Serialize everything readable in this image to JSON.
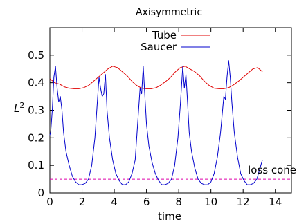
{
  "chart_data": {
    "type": "line",
    "title": "Axisymmetric",
    "xlabel": "time",
    "ylabel_base": "L",
    "ylabel_sup": "2",
    "xlim": [
      0,
      15
    ],
    "ylim": [
      0,
      0.6
    ],
    "xticks": [
      0,
      2,
      4,
      6,
      8,
      10,
      12,
      14
    ],
    "yticks": [
      0,
      0.1,
      0.2,
      0.3,
      0.4,
      0.5
    ],
    "xtick_labels": [
      "0",
      "2",
      "4",
      "6",
      "8",
      "10",
      "12",
      "14"
    ],
    "ytick_labels": [
      "0",
      "0.1",
      "0.2",
      "0.3",
      "0.4",
      "0.5"
    ],
    "grid": false,
    "legend_position": "top-right",
    "series": [
      {
        "name": "Tube",
        "color": "#e00000",
        "x": [
          0,
          0.3,
          0.6,
          0.9,
          1.2,
          1.5,
          1.8,
          2.1,
          2.4,
          2.7,
          3.0,
          3.3,
          3.6,
          3.9,
          4.2,
          4.5,
          4.8,
          5.1,
          5.4,
          5.7,
          6.0,
          6.3,
          6.6,
          6.9,
          7.2,
          7.5,
          7.8,
          8.1,
          8.4,
          8.7,
          9.0,
          9.3,
          9.6,
          9.9,
          10.2,
          10.5,
          10.8,
          11.1,
          11.4,
          11.7,
          12.0,
          12.3,
          12.6,
          12.9,
          13.2
        ],
        "y": [
          0.415,
          0.4,
          0.395,
          0.385,
          0.38,
          0.378,
          0.378,
          0.382,
          0.39,
          0.405,
          0.42,
          0.435,
          0.45,
          0.46,
          0.455,
          0.44,
          0.425,
          0.405,
          0.39,
          0.38,
          0.378,
          0.378,
          0.382,
          0.392,
          0.405,
          0.42,
          0.44,
          0.455,
          0.46,
          0.45,
          0.44,
          0.425,
          0.405,
          0.39,
          0.38,
          0.378,
          0.378,
          0.382,
          0.392,
          0.405,
          0.42,
          0.435,
          0.45,
          0.455,
          0.44
        ]
      },
      {
        "name": "Saucer",
        "color": "#0000cc",
        "x": [
          0,
          0.05,
          0.15,
          0.25,
          0.35,
          0.45,
          0.55,
          0.65,
          0.75,
          0.85,
          1.0,
          1.2,
          1.4,
          1.6,
          1.8,
          2.0,
          2.2,
          2.4,
          2.6,
          2.8,
          2.95,
          3.05,
          3.15,
          3.25,
          3.35,
          3.45,
          3.55,
          3.7,
          3.9,
          4.1,
          4.3,
          4.5,
          4.7,
          4.9,
          5.1,
          5.3,
          5.45,
          5.6,
          5.7,
          5.8,
          5.9,
          6.0,
          6.15,
          6.35,
          6.55,
          6.75,
          6.95,
          7.15,
          7.35,
          7.55,
          7.75,
          7.95,
          8.1,
          8.25,
          8.35,
          8.45,
          8.55,
          8.65,
          8.8,
          9.0,
          9.2,
          9.4,
          9.6,
          9.8,
          10.0,
          10.2,
          10.4,
          10.6,
          10.8,
          10.9,
          11.0,
          11.1,
          11.2,
          11.3,
          11.45,
          11.65,
          11.85,
          12.05,
          12.25,
          12.45,
          12.65,
          12.85,
          13.05,
          13.2
        ],
        "y": [
          0.21,
          0.22,
          0.3,
          0.42,
          0.46,
          0.38,
          0.33,
          0.35,
          0.3,
          0.22,
          0.15,
          0.1,
          0.06,
          0.04,
          0.03,
          0.03,
          0.035,
          0.05,
          0.1,
          0.2,
          0.33,
          0.42,
          0.38,
          0.35,
          0.36,
          0.43,
          0.3,
          0.2,
          0.12,
          0.07,
          0.045,
          0.03,
          0.03,
          0.04,
          0.07,
          0.12,
          0.25,
          0.38,
          0.36,
          0.46,
          0.35,
          0.25,
          0.17,
          0.11,
          0.07,
          0.045,
          0.03,
          0.03,
          0.035,
          0.05,
          0.1,
          0.2,
          0.32,
          0.46,
          0.38,
          0.43,
          0.33,
          0.22,
          0.15,
          0.09,
          0.05,
          0.035,
          0.03,
          0.03,
          0.04,
          0.07,
          0.13,
          0.22,
          0.35,
          0.34,
          0.42,
          0.48,
          0.42,
          0.33,
          0.22,
          0.13,
          0.07,
          0.045,
          0.03,
          0.03,
          0.035,
          0.05,
          0.09,
          0.12
        ]
      }
    ],
    "reference_lines": [
      {
        "name": "loss cone",
        "y": 0.05,
        "color": "#dd00aa",
        "style": "dashed"
      }
    ]
  }
}
